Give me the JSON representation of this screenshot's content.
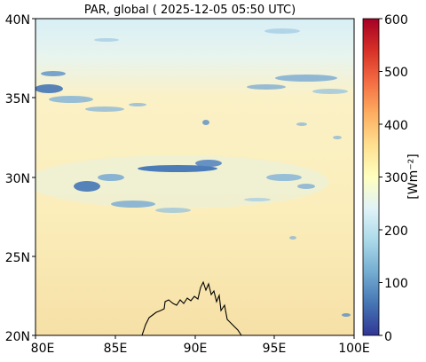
{
  "title": "PAR, global ( 2025-12-05 05:50 UTC)",
  "map": {
    "x_ticks": [
      "80E",
      "85E",
      "90E",
      "95E",
      "100E"
    ],
    "y_ticks": [
      "20N",
      "25N",
      "30N",
      "35N",
      "40N"
    ],
    "lon_range": [
      80,
      100
    ],
    "lat_range": [
      20,
      40
    ],
    "field_colors": {
      "background": "#fbeebb",
      "south_warm": "#f6e1a8",
      "north_cool": "#d6eef7",
      "cloud_light": "#9ec9e3",
      "cloud_dark": "#3a6fb4",
      "coastline": "#000000"
    }
  },
  "colorbar": {
    "label": "[Wm⁻²]",
    "ticks": [
      "0",
      "100",
      "200",
      "300",
      "400",
      "500",
      "600"
    ],
    "range": [
      0,
      600
    ],
    "stops": [
      "#313695",
      "#4575b4",
      "#74add1",
      "#abd9e9",
      "#e0f3f8",
      "#ffffbf",
      "#fee090",
      "#fdae61",
      "#f46d43",
      "#d73027",
      "#a50026"
    ]
  }
}
